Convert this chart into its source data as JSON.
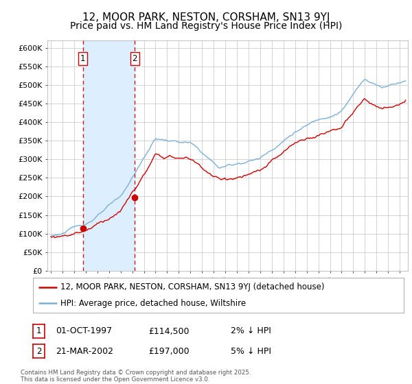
{
  "title": "12, MOOR PARK, NESTON, CORSHAM, SN13 9YJ",
  "subtitle": "Price paid vs. HM Land Registry's House Price Index (HPI)",
  "ylim": [
    0,
    620000
  ],
  "yticks": [
    0,
    50000,
    100000,
    150000,
    200000,
    250000,
    300000,
    350000,
    400000,
    450000,
    500000,
    550000,
    600000
  ],
  "ytick_labels": [
    "£0",
    "£50K",
    "£100K",
    "£150K",
    "£200K",
    "£250K",
    "£300K",
    "£350K",
    "£400K",
    "£450K",
    "£500K",
    "£550K",
    "£600K"
  ],
  "background_color": "#ffffff",
  "plot_bg_color": "#ffffff",
  "grid_color": "#cccccc",
  "hpi_color": "#7ab0d8",
  "price_color": "#cc0000",
  "shade_color": "#ddeeff",
  "sale1_date_num": 1997.75,
  "sale1_price": 114500,
  "sale1_label": "1",
  "sale2_date_num": 2002.22,
  "sale2_price": 197000,
  "sale2_label": "2",
  "legend_line1": "12, MOOR PARK, NESTON, CORSHAM, SN13 9YJ (detached house)",
  "legend_line2": "HPI: Average price, detached house, Wiltshire",
  "table_row1": [
    "1",
    "01-OCT-1997",
    "£114,500",
    "2% ↓ HPI"
  ],
  "table_row2": [
    "2",
    "21-MAR-2002",
    "£197,000",
    "5% ↓ HPI"
  ],
  "footnote": "Contains HM Land Registry data © Crown copyright and database right 2025.\nThis data is licensed under the Open Government Licence v3.0.",
  "title_fontsize": 11,
  "subtitle_fontsize": 10,
  "tick_fontsize": 8,
  "legend_fontsize": 8.5,
  "table_fontsize": 9
}
